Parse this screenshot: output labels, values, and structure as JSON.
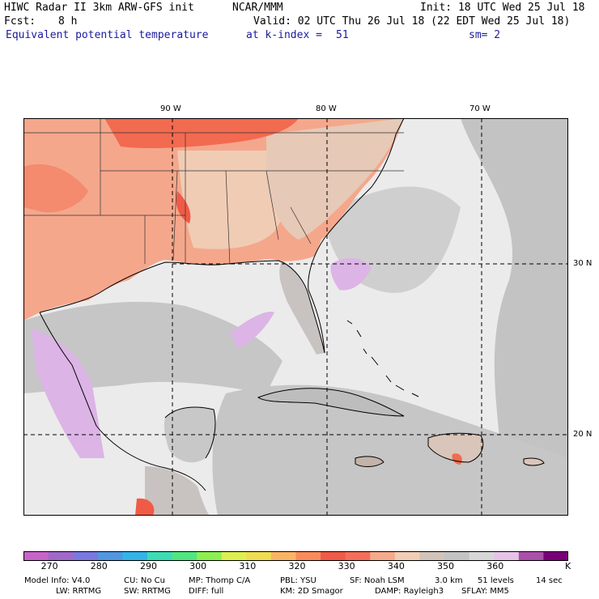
{
  "header": {
    "model_title": "HIWC Radar II 3km ARW-GFS init",
    "institution": "NCAR/MMM",
    "init_time": "Init: 18 UTC Wed 25 Jul 18",
    "forecast_label": "Fcst:",
    "forecast_hours": "8 h",
    "valid_time": "Valid: 02 UTC Thu 26 Jul 18 (22 EDT Wed 25 Jul 18)",
    "field_name": "Equivalent potential temperature",
    "level_label": "at k-index =",
    "level_value": "51",
    "smoothing": "sm= 2"
  },
  "map": {
    "longitude_labels": [
      "90 W",
      "80 W",
      "70 W"
    ],
    "latitude_labels": [
      "30 N",
      "20 N"
    ]
  },
  "colorbar": {
    "labels": [
      "270",
      "280",
      "290",
      "300",
      "310",
      "320",
      "330",
      "340",
      "350",
      "360"
    ],
    "unit": "K",
    "colors": [
      "#c864c8",
      "#a068c8",
      "#7878e0",
      "#5096e0",
      "#32b4e6",
      "#3cdcb4",
      "#50e680",
      "#8cf050",
      "#dcf050",
      "#f0dc50",
      "#fab464",
      "#fa8c5a",
      "#f05a46",
      "#f56e5a",
      "#f5aa8c",
      "#f0cdb4",
      "#d2c3b9",
      "#c3c3c3",
      "#d7d7d7",
      "#e6c3e6",
      "#aa50aa",
      "#780078"
    ]
  },
  "footer": {
    "line1": [
      "Model Info: V4.0",
      "CU: No Cu",
      "MP: Thomp C/A",
      "PBL: YSU",
      "SF: Noah LSM",
      "3.0 km",
      "51 levels",
      "14 sec"
    ],
    "line2": [
      "LW: RRTMG",
      "SW: RRTMG",
      "DIFF: full",
      "KM: 2D Smagor",
      "DAMP: Rayleigh3",
      "SFLAY: MM5"
    ]
  }
}
